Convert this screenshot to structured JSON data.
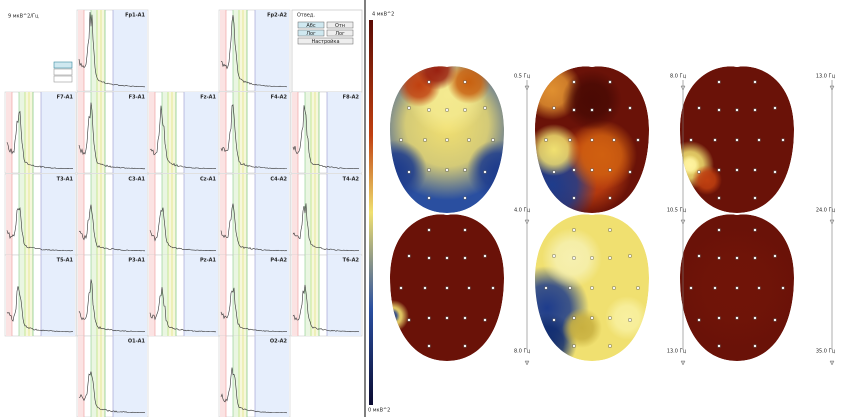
{
  "spectra_panel": {
    "scale_label": "9 мкВ^2/Гц",
    "channels": [
      "Fp1-A1",
      "Fp2-A2",
      "F7-A1",
      "F3-A1",
      "Fz-A1",
      "F4-A2",
      "F8-A2",
      "T3-A1",
      "C3-A1",
      "Cz-A1",
      "C4-A2",
      "T4-A2",
      "T5-A1",
      "P3-A1",
      "Pz-A1",
      "P4-A2",
      "T6-A2",
      "O1-A1",
      "O2-A2"
    ]
  },
  "controls": {
    "group_label": "Отвед.",
    "buttons": [
      "Абс",
      "Отн",
      "Лог",
      "Лог"
    ],
    "settings_button": "Настройка"
  },
  "maps_panel": {
    "scale_max": "4 мкВ^2",
    "scale_min": "0 мкВ^2",
    "columns": [
      {
        "top": "0.5 Гц",
        "mid": "4.0 Гц",
        "bottom": "8.0 Гц"
      },
      {
        "top": "8.0 Гц",
        "mid": "10.5 Гц",
        "bottom": "13.0 Гц"
      },
      {
        "top": "13.0 Гц",
        "mid": "24.0 Гц",
        "bottom": "35.0 Гц"
      }
    ]
  }
}
